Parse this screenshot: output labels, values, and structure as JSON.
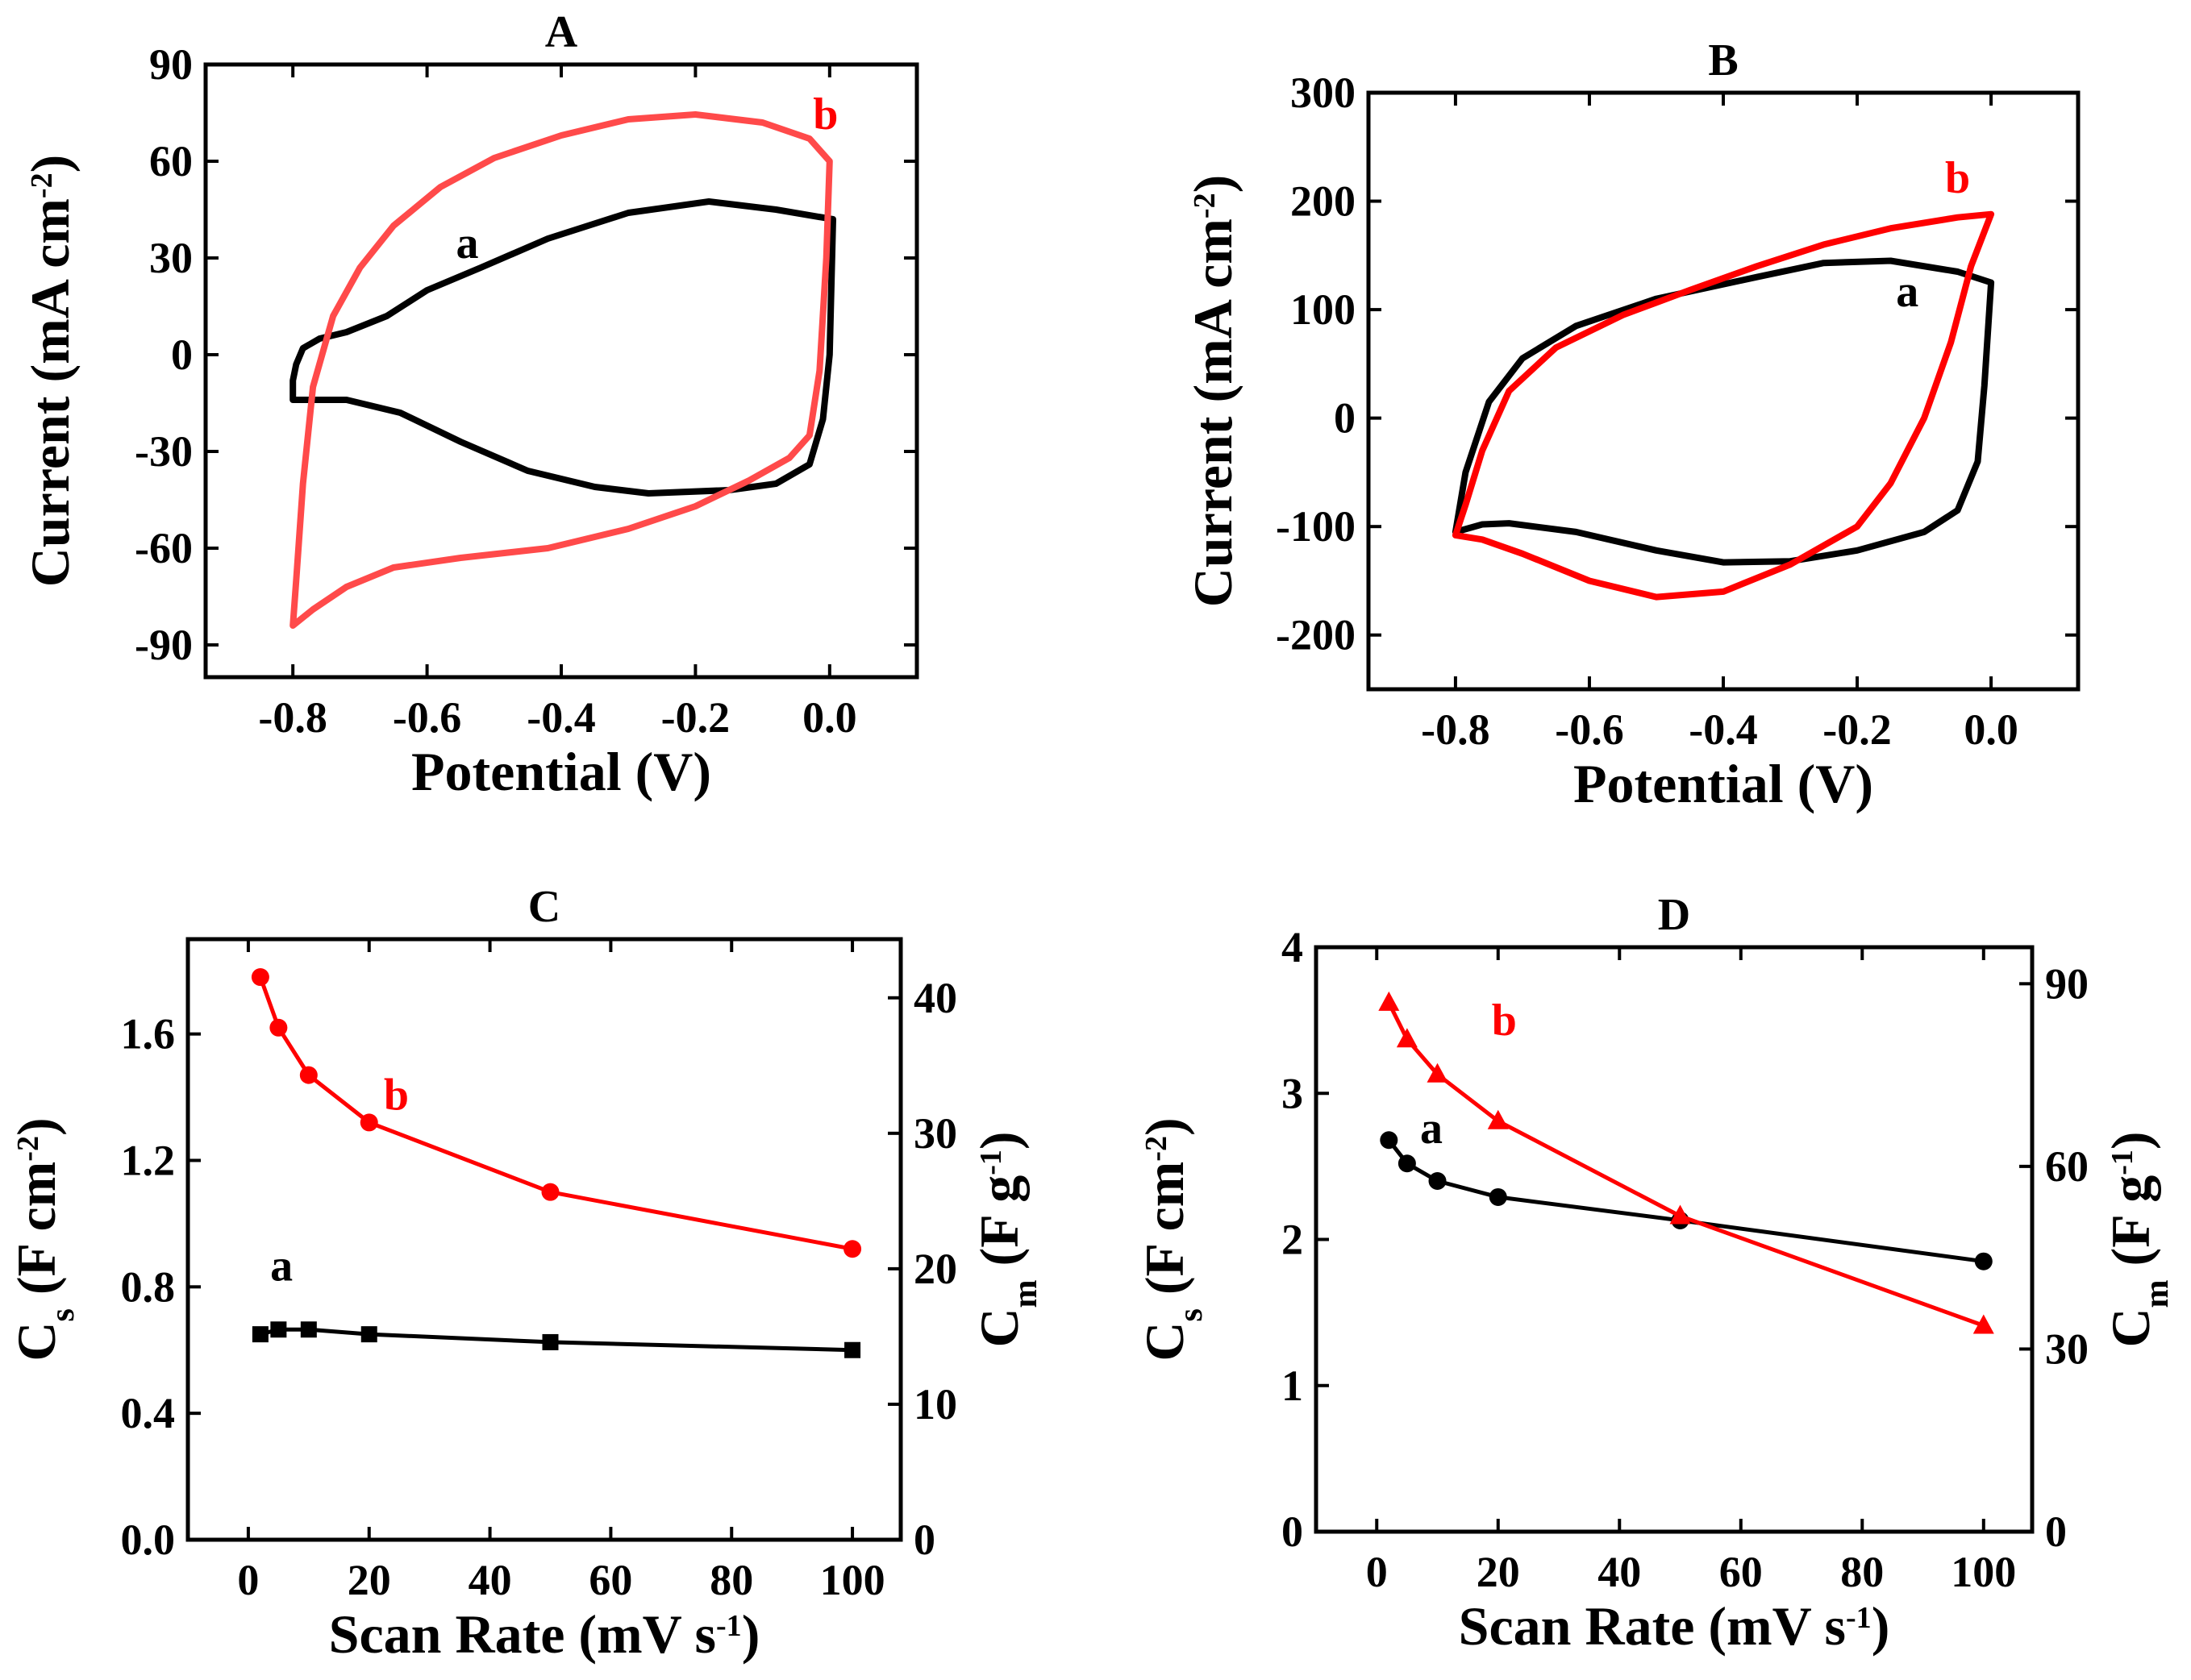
{
  "chart_data": [
    {
      "panel": "A",
      "type": "line",
      "title": "A",
      "xlabel": "Potential (V)",
      "ylabel": {
        "base": "Current (mA cm",
        "sup": "-2",
        "tail": ")"
      },
      "xlim": [
        -0.93,
        0.13
      ],
      "ylim": [
        -100,
        90
      ],
      "xticks": [
        -0.8,
        -0.6,
        -0.4,
        -0.2,
        0.0
      ],
      "xtick_labels": [
        "-0.8",
        "-0.6",
        "-0.4",
        "-0.2",
        "0.0"
      ],
      "yticks": [
        -90,
        -60,
        -30,
        0,
        30,
        60,
        90
      ],
      "ytick_labels": [
        "-90",
        "-60",
        "-30",
        "0",
        "30",
        "60",
        "90"
      ],
      "series": [
        {
          "name": "a",
          "color": "#000000",
          "points": [
            [
              0.005,
              42
            ],
            [
              -0.08,
              45
            ],
            [
              -0.18,
              47.5
            ],
            [
              -0.3,
              44
            ],
            [
              -0.42,
              36
            ],
            [
              -0.52,
              27
            ],
            [
              -0.6,
              20
            ],
            [
              -0.66,
              12
            ],
            [
              -0.72,
              7
            ],
            [
              -0.76,
              5
            ],
            [
              -0.785,
              2
            ],
            [
              -0.795,
              -3
            ],
            [
              -0.8,
              -8
            ],
            [
              -0.8,
              -14
            ],
            [
              -0.77,
              -14
            ],
            [
              -0.72,
              -14
            ],
            [
              -0.64,
              -18
            ],
            [
              -0.55,
              -27
            ],
            [
              -0.45,
              -36
            ],
            [
              -0.35,
              -41
            ],
            [
              -0.27,
              -43
            ],
            [
              -0.15,
              -42
            ],
            [
              -0.08,
              -40
            ],
            [
              -0.03,
              -34
            ],
            [
              -0.01,
              -20
            ],
            [
              0.0,
              0
            ],
            [
              0.005,
              42
            ]
          ]
        },
        {
          "name": "b",
          "color": "#ff4a4a",
          "points": [
            [
              0.0,
              60
            ],
            [
              -0.03,
              67
            ],
            [
              -0.1,
              72
            ],
            [
              -0.2,
              74.5
            ],
            [
              -0.3,
              73
            ],
            [
              -0.4,
              68
            ],
            [
              -0.5,
              61
            ],
            [
              -0.58,
              52
            ],
            [
              -0.65,
              40
            ],
            [
              -0.7,
              27
            ],
            [
              -0.74,
              12
            ],
            [
              -0.77,
              -10
            ],
            [
              -0.785,
              -40
            ],
            [
              -0.795,
              -70
            ],
            [
              -0.8,
              -84
            ],
            [
              -0.77,
              -79
            ],
            [
              -0.72,
              -72
            ],
            [
              -0.65,
              -66
            ],
            [
              -0.55,
              -63
            ],
            [
              -0.42,
              -60
            ],
            [
              -0.3,
              -54
            ],
            [
              -0.2,
              -47
            ],
            [
              -0.12,
              -39
            ],
            [
              -0.06,
              -32
            ],
            [
              -0.03,
              -25
            ],
            [
              -0.015,
              -5
            ],
            [
              -0.005,
              30
            ],
            [
              0.0,
              60
            ]
          ]
        }
      ],
      "annotations": [
        {
          "text": "a",
          "x": -0.54,
          "y": 30,
          "color": "#000000"
        },
        {
          "text": "b",
          "x": -0.006,
          "y": 70,
          "color": "#ff0000"
        }
      ]
    },
    {
      "panel": "B",
      "type": "line",
      "title": "B",
      "xlabel": "Potential (V)",
      "ylabel": {
        "base": "Current (mA cm",
        "sup": "-2",
        "tail": ")"
      },
      "xlim": [
        -0.93,
        0.13
      ],
      "ylim": [
        -250,
        300
      ],
      "xticks": [
        -0.8,
        -0.6,
        -0.4,
        -0.2,
        0.0
      ],
      "xtick_labels": [
        "-0.8",
        "-0.6",
        "-0.4",
        "-0.2",
        "0.0"
      ],
      "yticks": [
        -200,
        -100,
        0,
        100,
        200,
        300
      ],
      "ytick_labels": [
        "-200",
        "-100",
        "0",
        "100",
        "200",
        "300"
      ],
      "series": [
        {
          "name": "a",
          "color": "#000000",
          "points": [
            [
              0.0,
              125
            ],
            [
              -0.05,
              135
            ],
            [
              -0.15,
              145
            ],
            [
              -0.25,
              143
            ],
            [
              -0.35,
              130
            ],
            [
              -0.5,
              110
            ],
            [
              -0.62,
              85
            ],
            [
              -0.7,
              55
            ],
            [
              -0.75,
              15
            ],
            [
              -0.785,
              -50
            ],
            [
              -0.8,
              -105
            ],
            [
              -0.76,
              -98
            ],
            [
              -0.72,
              -97
            ],
            [
              -0.62,
              -105
            ],
            [
              -0.5,
              -122
            ],
            [
              -0.4,
              -133
            ],
            [
              -0.3,
              -132
            ],
            [
              -0.2,
              -122
            ],
            [
              -0.1,
              -105
            ],
            [
              -0.05,
              -85
            ],
            [
              -0.02,
              -40
            ],
            [
              -0.01,
              30
            ],
            [
              0.0,
              125
            ]
          ]
        },
        {
          "name": "b",
          "color": "#ff0000",
          "points": [
            [
              0.0,
              188
            ],
            [
              -0.05,
              185
            ],
            [
              -0.15,
              175
            ],
            [
              -0.25,
              160
            ],
            [
              -0.35,
              140
            ],
            [
              -0.45,
              118
            ],
            [
              -0.55,
              95
            ],
            [
              -0.65,
              65
            ],
            [
              -0.72,
              25
            ],
            [
              -0.76,
              -30
            ],
            [
              -0.785,
              -80
            ],
            [
              -0.8,
              -108
            ],
            [
              -0.76,
              -112
            ],
            [
              -0.7,
              -125
            ],
            [
              -0.6,
              -150
            ],
            [
              -0.5,
              -165
            ],
            [
              -0.4,
              -160
            ],
            [
              -0.3,
              -135
            ],
            [
              -0.2,
              -100
            ],
            [
              -0.15,
              -60
            ],
            [
              -0.1,
              0
            ],
            [
              -0.06,
              70
            ],
            [
              -0.03,
              140
            ],
            [
              0.0,
              188
            ]
          ]
        }
      ],
      "annotations": [
        {
          "text": "a",
          "x": -0.125,
          "y": 103,
          "color": "#000000"
        },
        {
          "text": "b",
          "x": -0.05,
          "y": 208,
          "color": "#ff0000"
        }
      ]
    },
    {
      "panel": "C",
      "type": "line",
      "title": "C",
      "xlabel": {
        "base": "Scan Rate (mV s",
        "sup": "-1",
        "tail": ")"
      },
      "ylabel_left": {
        "main": "C",
        "sub": "s",
        "rest": " (F cm",
        "sup": "-2",
        "tail": ")"
      },
      "ylabel_right": {
        "main": "C",
        "sub": "m",
        "rest": " (F g",
        "sup": "-1",
        "tail": ")"
      },
      "xlim": [
        -10,
        108
      ],
      "ylim": [
        0,
        1.9
      ],
      "ylim_right": [
        0,
        44.33
      ],
      "xticks": [
        0,
        20,
        40,
        60,
        80,
        100
      ],
      "xtick_labels": [
        "0",
        "20",
        "40",
        "60",
        "80",
        "100"
      ],
      "yticks": [
        0,
        0.4,
        0.8,
        1.2,
        1.6
      ],
      "ytick_labels": [
        "0.0",
        "0.4",
        "0.8",
        "1.2",
        "1.6"
      ],
      "yticks_right": [
        0,
        10,
        20,
        30,
        40
      ],
      "ytick_labels_right": [
        "0",
        "10",
        "20",
        "30",
        "40"
      ],
      "series": [
        {
          "name": "a",
          "color": "#000000",
          "marker": "square",
          "x": [
            2,
            5,
            10,
            20,
            50,
            100
          ],
          "y": [
            0.65,
            0.665,
            0.665,
            0.65,
            0.625,
            0.6
          ]
        },
        {
          "name": "b",
          "color": "#ff0000",
          "marker": "circle",
          "x": [
            2,
            5,
            10,
            20,
            50,
            100
          ],
          "y": [
            1.78,
            1.62,
            1.47,
            1.32,
            1.1,
            0.92
          ]
        }
      ],
      "annotations": [
        {
          "text": "a",
          "x": 5.5,
          "y": 0.82,
          "color": "#000000"
        },
        {
          "text": "b",
          "x": 24.5,
          "y": 1.36,
          "color": "#ff0000"
        }
      ]
    },
    {
      "panel": "D",
      "type": "line",
      "title": "D",
      "xlabel": {
        "base": "Scan Rate (mV s",
        "sup": "-1",
        "tail": ")"
      },
      "ylabel_left": {
        "main": "C",
        "sub": "s",
        "rest": " (F cm",
        "sup": "-2",
        "tail": ")"
      },
      "ylabel_right": {
        "main": "C",
        "sub": "m",
        "rest": " (F g",
        "sup": "-1",
        "tail": ")"
      },
      "xlim": [
        -10,
        108
      ],
      "ylim": [
        0,
        4
      ],
      "ylim_right": [
        0,
        96
      ],
      "xticks": [
        0,
        20,
        40,
        60,
        80,
        100
      ],
      "xtick_labels": [
        "0",
        "20",
        "40",
        "60",
        "80",
        "100"
      ],
      "yticks": [
        0,
        1,
        2,
        3,
        4
      ],
      "ytick_labels": [
        "0",
        "1",
        "2",
        "3",
        "4"
      ],
      "yticks_right": [
        0,
        30,
        60,
        90
      ],
      "ytick_labels_right": [
        "0",
        "30",
        "60",
        "90"
      ],
      "series": [
        {
          "name": "a",
          "color": "#000000",
          "marker": "circle",
          "x": [
            2,
            5,
            10,
            20,
            50,
            100
          ],
          "y": [
            2.68,
            2.52,
            2.4,
            2.29,
            2.13,
            1.85
          ]
        },
        {
          "name": "b",
          "color": "#ff0000",
          "marker": "triangle",
          "x": [
            2,
            5,
            10,
            20,
            50,
            100
          ],
          "y": [
            3.62,
            3.37,
            3.13,
            2.81,
            2.16,
            1.41
          ]
        }
      ],
      "annotations": [
        {
          "text": "a",
          "x": 9,
          "y": 2.66,
          "color": "#000000"
        },
        {
          "text": "b",
          "x": 21,
          "y": 3.4,
          "color": "#ff0000"
        }
      ]
    }
  ]
}
